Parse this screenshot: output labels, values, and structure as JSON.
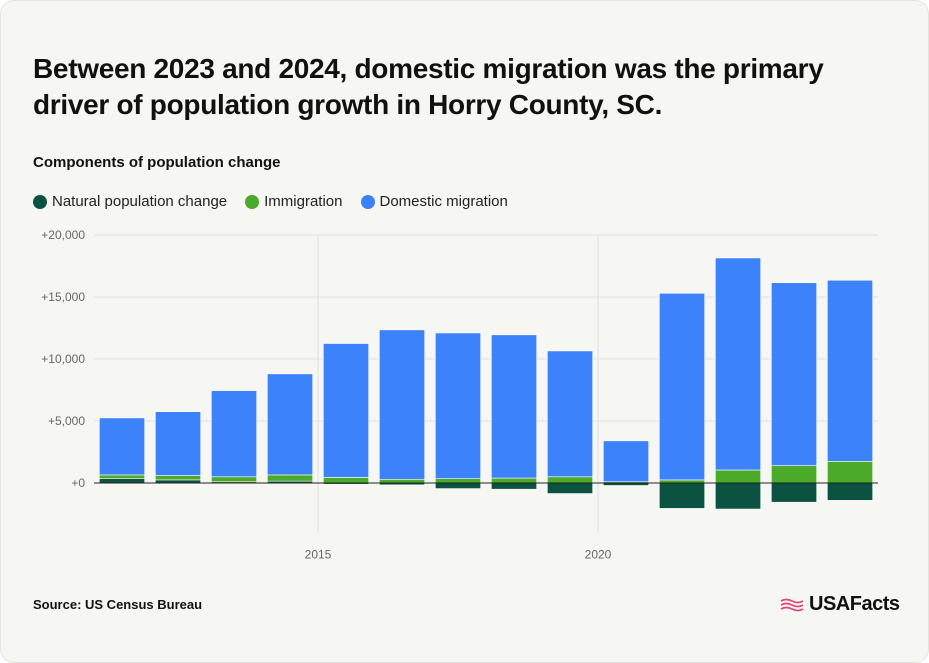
{
  "header": {
    "title": "Between 2023 and 2024, domestic migration was the primary driver of population growth in Horry County, SC.",
    "subtitle": "Components of population change"
  },
  "footer": {
    "source": "Source: US Census Bureau",
    "brand": "USAFacts"
  },
  "colors": {
    "natural": "#0b5240",
    "immigration": "#4caa2a",
    "domestic": "#3b82fb",
    "grid": "#e0e0dc",
    "axis_text": "#666666"
  },
  "chart_data": {
    "type": "bar",
    "stacked": true,
    "title": "Between 2023 and 2024, domestic migration was the primary driver of population growth in Horry County, SC.",
    "subtitle": "Components of population change",
    "xlabel": "",
    "ylabel": "",
    "x": [
      2011,
      2012,
      2013,
      2014,
      2015,
      2016,
      2017,
      2018,
      2019,
      2020,
      2021,
      2022,
      2023,
      2024
    ],
    "x_ticks": [
      2015,
      2020
    ],
    "x_tick_labels": [
      "2015",
      "2020"
    ],
    "ylim": [
      -4000,
      20000
    ],
    "y_ticks": [
      0,
      5000,
      10000,
      15000,
      20000
    ],
    "y_tick_labels": [
      "+0",
      "+5,000",
      "+10,000",
      "+15,000",
      "+20,000"
    ],
    "legend_position": "top-left",
    "grid": true,
    "series": [
      {
        "name": "Natural population change",
        "color": "#0b5240",
        "values": [
          350,
          250,
          100,
          150,
          -100,
          -150,
          -450,
          -500,
          -850,
          -200,
          -2050,
          -2100,
          -1550,
          -1400
        ]
      },
      {
        "name": "Immigration",
        "color": "#4caa2a",
        "values": [
          300,
          350,
          400,
          500,
          450,
          300,
          350,
          400,
          500,
          100,
          250,
          1050,
          1400,
          1750
        ]
      },
      {
        "name": "Domestic migration",
        "color": "#3b82fb",
        "values": [
          4600,
          5150,
          6950,
          8150,
          10800,
          12050,
          11750,
          11550,
          10150,
          3300,
          15050,
          17100,
          14750,
          14600
        ]
      }
    ]
  }
}
